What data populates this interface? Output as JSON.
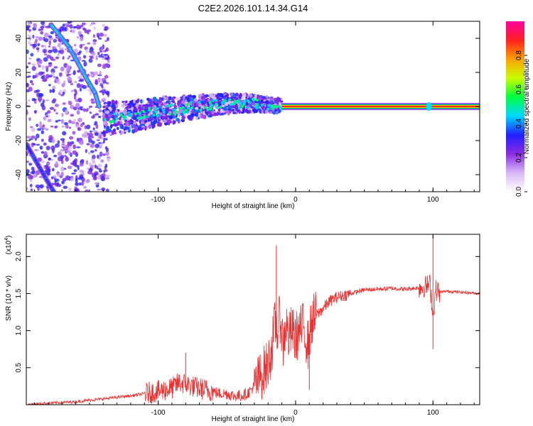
{
  "chart_data": [
    {
      "type": "heatmap",
      "title": "C2E2.2026.101.14.34.G14",
      "xlabel": "Height of straight line (km)",
      "ylabel": "Frequency (Hz)",
      "xlim": [
        -196,
        134
      ],
      "ylim": [
        -50,
        50
      ],
      "xticks": [
        -100,
        0,
        100
      ],
      "xtick_labels": [
        "-100",
        "0",
        "100"
      ],
      "yticks": [
        -40,
        -20,
        0,
        20,
        40
      ],
      "ytick_labels": [
        "-40",
        "-20",
        "0",
        "20",
        "40"
      ],
      "colorbar": {
        "label": "Normalized spectral amplitude",
        "range": [
          0,
          1
        ],
        "ticks": [
          0.0,
          0.2,
          0.4,
          0.6,
          0.8
        ],
        "tick_labels": [
          "0.0",
          "0.2",
          "0.4",
          "0.6",
          "0.8"
        ],
        "colors": [
          "#ffffff",
          "#d8b8f8",
          "#8a2be2",
          "#2020ff",
          "#00d8ff",
          "#00ff40",
          "#c8ff00",
          "#ffa000",
          "#ff2020",
          "#ff00a0"
        ]
      },
      "features": [
        {
          "name": "steep line",
          "x": [
            -178,
            -172,
            -165,
            -158,
            -152,
            -146,
            -143
          ],
          "y": [
            48,
            42,
            35,
            25,
            16,
            8,
            0
          ],
          "amplitude": 0.45
        },
        {
          "name": "steep line lower",
          "x": [
            -196,
            -189,
            -182,
            -176
          ],
          "y": [
            -22,
            -32,
            -42,
            -50
          ],
          "amplitude": 0.35
        },
        {
          "name": "noisy band",
          "x": [
            -140,
            -120,
            -100,
            -80,
            -60,
            -40,
            -20,
            -10
          ],
          "y": [
            -7,
            -6,
            -3,
            -1,
            1,
            2,
            1,
            0
          ],
          "amplitude": 0.3
        },
        {
          "name": "steady tone",
          "x": [
            -10,
            134
          ],
          "y": [
            0,
            0
          ],
          "amplitude": 0.9
        }
      ]
    },
    {
      "type": "line",
      "title": "",
      "xlabel": "Height of straight line (km)",
      "ylabel": "SNR (10 * v/v)",
      "scale_label_prefix": "(x10",
      "scale_label_exp": "4",
      "scale_label_suffix": ")",
      "xlim": [
        -196,
        134
      ],
      "ylim": [
        0,
        2.3
      ],
      "xticks": [
        -100,
        0,
        100
      ],
      "xtick_labels": [
        "-100",
        "0",
        "100"
      ],
      "yticks": [
        0.5,
        1.0,
        1.5,
        2.0
      ],
      "ytick_labels": [
        "0.5",
        "1.0",
        "1.5",
        "2.0"
      ],
      "line_color": "#e83030",
      "series": [
        {
          "name": "SNR",
          "x": [
            -196,
            -180,
            -160,
            -150,
            -140,
            -130,
            -120,
            -110,
            -100,
            -95,
            -90,
            -85,
            -80,
            -75,
            -70,
            -65,
            -60,
            -55,
            -50,
            -45,
            -40,
            -35,
            -30,
            -25,
            -20,
            -17,
            -15,
            -13,
            -11,
            -9,
            -7,
            -5,
            -3,
            0,
            3,
            6,
            9,
            12,
            15,
            20,
            25,
            30,
            40,
            50,
            60,
            70,
            80,
            90,
            95,
            98,
            100,
            102,
            105,
            110,
            120,
            134
          ],
          "y": [
            0.0,
            0.02,
            0.04,
            0.06,
            0.08,
            0.1,
            0.12,
            0.15,
            0.18,
            0.2,
            0.22,
            0.3,
            0.28,
            0.25,
            0.22,
            0.2,
            0.18,
            0.15,
            0.15,
            0.12,
            0.12,
            0.15,
            0.25,
            0.4,
            0.55,
            0.8,
            1.1,
            1.0,
            1.2,
            0.8,
            1.1,
            0.9,
            1.0,
            0.9,
            1.0,
            1.05,
            0.8,
            1.15,
            1.2,
            1.3,
            1.4,
            1.45,
            1.5,
            1.55,
            1.56,
            1.57,
            1.56,
            1.58,
            1.6,
            1.62,
            1.2,
            1.55,
            1.52,
            1.53,
            1.52,
            1.5
          ]
        }
      ],
      "spikes": [
        {
          "x": -14,
          "y": 2.15
        },
        {
          "x": -80,
          "y": 0.7
        },
        {
          "x": 10,
          "y": 0.2
        },
        {
          "x": 100,
          "y": 2.3
        },
        {
          "x": 100,
          "y": 0.75
        }
      ]
    }
  ]
}
